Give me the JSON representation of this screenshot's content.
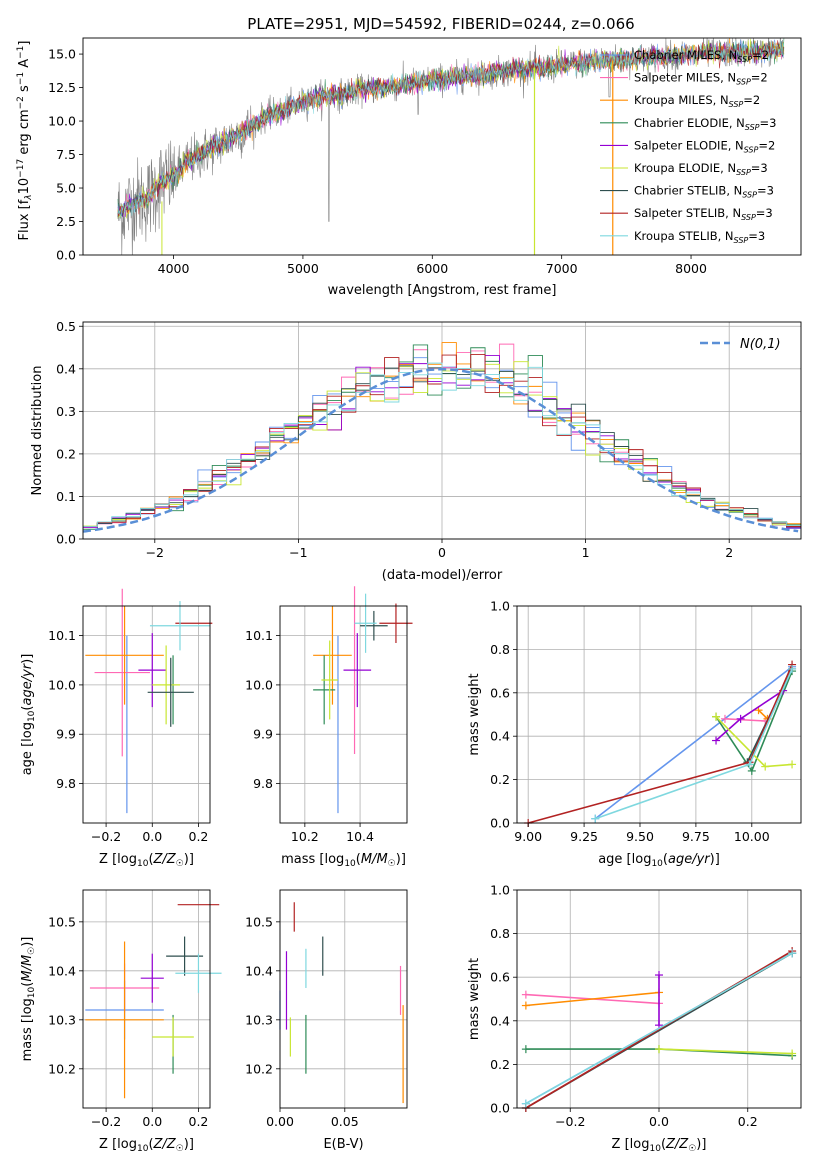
{
  "figure": {
    "title": "PLATE=2951, MJD=54592, FIBERID=0244, z=0.066"
  },
  "series": [
    {
      "name": "Chabrier MILES, N_SSP=2",
      "color": "#6495ed",
      "label_main": "Chabrier MILES, N",
      "label_sub": "SSP",
      "label_tail": "=2"
    },
    {
      "name": "Salpeter MILES, N_SSP=2",
      "color": "#ff69b4",
      "label_main": "Salpeter MILES, N",
      "label_sub": "SSP",
      "label_tail": "=2"
    },
    {
      "name": "Kroupa MILES, N_SSP=2",
      "color": "#ff8c00",
      "label_main": "Kroupa MILES, N",
      "label_sub": "SSP",
      "label_tail": "=2"
    },
    {
      "name": "Chabrier ELODIE, N_SSP=3",
      "color": "#2e8b57",
      "label_main": "Chabrier ELODIE, N",
      "label_sub": "SSP",
      "label_tail": "=3"
    },
    {
      "name": "Salpeter ELODIE, N_SSP=2",
      "color": "#9400d3",
      "label_main": "Salpeter ELODIE, N",
      "label_sub": "SSP",
      "label_tail": "=2"
    },
    {
      "name": "Kroupa ELODIE, N_SSP=3",
      "color": "#c8e632",
      "label_main": "Kroupa ELODIE, N",
      "label_sub": "SSP",
      "label_tail": "=3"
    },
    {
      "name": "Chabrier STELIB, N_SSP=3",
      "color": "#2f4f4f",
      "label_main": "Chabrier STELIB, N",
      "label_sub": "SSP",
      "label_tail": "=3"
    },
    {
      "name": "Salpeter STELIB, N_SSP=3",
      "color": "#b22222",
      "label_main": "Salpeter STELIB, N",
      "label_sub": "SSP",
      "label_tail": "=3"
    },
    {
      "name": "Kroupa STELIB, N_SSP=3",
      "color": "#7fd8df",
      "label_main": "Kroupa STELIB, N",
      "label_sub": "SSP",
      "label_tail": "=3"
    }
  ],
  "chart_data": [
    {
      "id": "spectrum",
      "type": "line",
      "xlabel": "wavelength [Angstrom, rest frame]",
      "ylabel": "Flux [f_λ 10^-17 erg cm^-2 s^-1 A^-1]",
      "ylabel_parts": [
        "Flux [f",
        "λ",
        "10",
        "−17",
        " erg cm",
        "−2",
        " s",
        "−1",
        " A",
        "−1",
        "]"
      ],
      "xlim": [
        3300,
        8850
      ],
      "ylim": [
        0,
        16.2
      ],
      "xticks": [
        4000,
        5000,
        6000,
        7000,
        8000
      ],
      "yticks": [
        0.0,
        2.5,
        5.0,
        7.5,
        10.0,
        12.5,
        15.0
      ],
      "xticklabels": [
        "4000",
        "5000",
        "6000",
        "7000",
        "8000"
      ],
      "yticklabels": [
        "0.0",
        "2.5",
        "5.0",
        "7.5",
        "10.0",
        "12.5",
        "15.0"
      ],
      "continuum": [
        [
          3590,
          3.2
        ],
        [
          3700,
          4.0
        ],
        [
          3800,
          4.2
        ],
        [
          3900,
          5.4
        ],
        [
          4000,
          5.8
        ],
        [
          4100,
          6.9
        ],
        [
          4300,
          8.0
        ],
        [
          4500,
          9.0
        ],
        [
          4700,
          10.3
        ],
        [
          4900,
          11.0
        ],
        [
          5100,
          11.8
        ],
        [
          5300,
          12.0
        ],
        [
          5500,
          12.4
        ],
        [
          5700,
          12.6
        ],
        [
          5900,
          12.9
        ],
        [
          6100,
          13.2
        ],
        [
          6300,
          13.4
        ],
        [
          6500,
          13.6
        ],
        [
          6700,
          13.9
        ],
        [
          6900,
          14.0
        ],
        [
          7100,
          14.3
        ],
        [
          7300,
          14.5
        ],
        [
          7500,
          14.6
        ],
        [
          7700,
          14.8
        ],
        [
          7900,
          14.9
        ],
        [
          8100,
          15.1
        ],
        [
          8300,
          15.1
        ],
        [
          8500,
          15.2
        ],
        [
          8700,
          15.3
        ]
      ],
      "data_range": [
        3570,
        8720
      ],
      "legend_position": "right"
    },
    {
      "id": "residuals",
      "type": "histogram",
      "xlabel": "(data-model)/error",
      "ylabel": "Normed distribution",
      "xlim": [
        -2.5,
        2.5
      ],
      "ylim": [
        0,
        0.51
      ],
      "xticks": [
        -2,
        -1,
        0,
        1,
        2
      ],
      "xticklabels": [
        "−2",
        "−1",
        "0",
        "1",
        "2"
      ],
      "yticks": [
        0.0,
        0.1,
        0.2,
        0.3,
        0.4,
        0.5
      ],
      "yticklabels": [
        "0.0",
        "0.1",
        "0.2",
        "0.3",
        "0.4",
        "0.5"
      ],
      "bin_width": 0.1,
      "normal_curve_label": "N(0,1)",
      "normal_curve_color": "#5a8fd6",
      "legend_position": "upper right"
    },
    {
      "id": "age-vs-Z",
      "type": "errorbar",
      "xlabel": "Z [log10(Z/Z☉)]",
      "ylabel": "age  [log10(age/yr)]",
      "xlim": [
        -0.3,
        0.25
      ],
      "ylim": [
        9.72,
        10.16
      ],
      "xticks": [
        -0.2,
        0.0,
        0.2
      ],
      "xticklabels": [
        "−0.2",
        "0.0",
        "0.2"
      ],
      "yticks": [
        9.8,
        9.9,
        10.0,
        10.1
      ],
      "yticklabels": [
        "9.8",
        "9.9",
        "10.0",
        "10.1"
      ],
      "points": [
        {
          "s": 0,
          "x": -0.11,
          "y": 9.92,
          "xerr": 0,
          "yerr": 0.18
        },
        {
          "s": 1,
          "x": -0.13,
          "y": 10.025,
          "xerr": 0.12,
          "yerr": 0.17
        },
        {
          "s": 2,
          "x": -0.12,
          "y": 10.06,
          "xerr": 0.17,
          "yerr": 0.1
        },
        {
          "s": 3,
          "x": 0.09,
          "y": 9.99,
          "xerr": 0.0,
          "yerr": 0.07
        },
        {
          "s": 4,
          "x": 0.0,
          "y": 10.03,
          "xerr": 0.06,
          "yerr": 0.075
        },
        {
          "s": 5,
          "x": 0.06,
          "y": 10.0,
          "xerr": 0.06,
          "yerr": 0.08
        },
        {
          "s": 6,
          "x": 0.08,
          "y": 9.985,
          "xerr": 0.1,
          "yerr": 0.07
        },
        {
          "s": 7,
          "x": 0.18,
          "y": 10.125,
          "xerr": 0.08,
          "yerr": 0.0
        },
        {
          "s": 8,
          "x": 0.12,
          "y": 10.12,
          "xerr": 0.13,
          "yerr": 0.05
        }
      ]
    },
    {
      "id": "age-vs-mass",
      "type": "errorbar",
      "xlabel": "mass [log10(M/M☉)]",
      "ylabel": "",
      "xlim": [
        10.11,
        10.57
      ],
      "ylim": [
        9.72,
        10.16
      ],
      "xticks": [
        10.2,
        10.4
      ],
      "xticklabels": [
        "10.2",
        "10.4"
      ],
      "yticks": [
        9.8,
        9.9,
        10.0,
        10.1
      ],
      "yticklabels": [
        "9.8",
        "9.9",
        "10.0",
        "10.1"
      ],
      "points": [
        {
          "s": 0,
          "x": 10.32,
          "y": 9.92,
          "xerr": 0,
          "yerr": 0.18
        },
        {
          "s": 1,
          "x": 10.38,
          "y": 10.03,
          "xerr": 0,
          "yerr": 0.17
        },
        {
          "s": 2,
          "x": 10.3,
          "y": 10.06,
          "xerr": 0.07,
          "yerr": 0.1
        },
        {
          "s": 3,
          "x": 10.27,
          "y": 9.99,
          "xerr": 0.04,
          "yerr": 0.07
        },
        {
          "s": 4,
          "x": 10.39,
          "y": 10.03,
          "xerr": 0.05,
          "yerr": 0.075
        },
        {
          "s": 5,
          "x": 10.29,
          "y": 10.01,
          "xerr": 0.03,
          "yerr": 0.08
        },
        {
          "s": 6,
          "x": 10.45,
          "y": 10.12,
          "xerr": 0.05,
          "yerr": 0.03
        },
        {
          "s": 7,
          "x": 10.53,
          "y": 10.125,
          "xerr": 0.06,
          "yerr": 0.04
        },
        {
          "s": 8,
          "x": 10.42,
          "y": 10.125,
          "xerr": 0.04,
          "yerr": 0.06
        }
      ]
    },
    {
      "id": "weight-vs-age",
      "type": "line",
      "xlabel": "age  [log10(age/yr)]",
      "ylabel": "mass weight",
      "xlim": [
        8.95,
        10.22
      ],
      "ylim": [
        0,
        1.0
      ],
      "xticks": [
        9.0,
        9.25,
        9.5,
        9.75,
        10.0
      ],
      "xticklabels": [
        "9.00",
        "9.25",
        "9.50",
        "9.75",
        "10.00"
      ],
      "yticks": [
        0.0,
        0.2,
        0.4,
        0.6,
        0.8,
        1.0
      ],
      "yticklabels": [
        "0.0",
        "0.2",
        "0.4",
        "0.6",
        "0.8",
        "1.0"
      ],
      "lines": [
        {
          "s": 0,
          "x": [
            9.3,
            10.18
          ],
          "y": [
            0.02,
            0.72
          ]
        },
        {
          "s": 1,
          "x": [
            9.88,
            10.06
          ],
          "y": [
            0.48,
            0.47
          ]
        },
        {
          "s": 2,
          "x": [
            10.03,
            10.07
          ],
          "y": [
            0.52,
            0.48
          ]
        },
        {
          "s": 3,
          "x": [
            9.84,
            10.0,
            10.18
          ],
          "y": [
            0.49,
            0.24,
            0.7
          ]
        },
        {
          "s": 4,
          "x": [
            9.84,
            9.95,
            10.14
          ],
          "y": [
            0.38,
            0.48,
            0.61
          ]
        },
        {
          "s": 5,
          "x": [
            9.84,
            10.06,
            10.18
          ],
          "y": [
            0.49,
            0.26,
            0.27
          ]
        },
        {
          "s": 6,
          "x": [
            9.98,
            10.18
          ],
          "y": [
            0.28,
            0.71
          ]
        },
        {
          "s": 7,
          "x": [
            9.0,
            9.99,
            10.18
          ],
          "y": [
            0.0,
            0.28,
            0.73
          ]
        },
        {
          "s": 8,
          "x": [
            9.3,
            9.99,
            10.18
          ],
          "y": [
            0.02,
            0.27,
            0.71
          ]
        }
      ]
    },
    {
      "id": "mass-vs-Z",
      "type": "errorbar",
      "xlabel": "Z [log10(Z/Z☉)]",
      "ylabel": "mass [log10(M/M☉)]",
      "xlim": [
        -0.3,
        0.25
      ],
      "ylim": [
        10.12,
        10.565
      ],
      "xticks": [
        -0.2,
        0.0,
        0.2
      ],
      "xticklabels": [
        "−0.2",
        "0.0",
        "0.2"
      ],
      "yticks": [
        10.2,
        10.3,
        10.4,
        10.5
      ],
      "yticklabels": [
        "10.2",
        "10.3",
        "10.4",
        "10.5"
      ],
      "points": [
        {
          "s": 0,
          "x": -0.12,
          "y": 10.32,
          "xerr": 0.17,
          "yerr": 0.06
        },
        {
          "s": 1,
          "x": -0.12,
          "y": 10.365,
          "xerr": 0.15,
          "yerr": 0.05
        },
        {
          "s": 2,
          "x": -0.12,
          "y": 10.3,
          "xerr": 0.17,
          "yerr": 0.16
        },
        {
          "s": 3,
          "x": 0.09,
          "y": 10.25,
          "xerr": 0.0,
          "yerr": 0.06
        },
        {
          "s": 4,
          "x": 0.0,
          "y": 10.385,
          "xerr": 0.05,
          "yerr": 0.05
        },
        {
          "s": 5,
          "x": 0.09,
          "y": 10.265,
          "xerr": 0.09,
          "yerr": 0.04
        },
        {
          "s": 6,
          "x": 0.14,
          "y": 10.43,
          "xerr": 0.08,
          "yerr": 0.04
        },
        {
          "s": 7,
          "x": 0.2,
          "y": 10.535,
          "xerr": 0.09,
          "yerr": 0.0
        },
        {
          "s": 8,
          "x": 0.2,
          "y": 10.395,
          "xerr": 0.1,
          "yerr": 0.04
        }
      ]
    },
    {
      "id": "mass-vs-ebv",
      "type": "errorbar",
      "xlabel": "E(B-V)",
      "ylabel": "",
      "xlim": [
        0.0,
        0.098
      ],
      "ylim": [
        10.12,
        10.565
      ],
      "xticks": [
        0.0,
        0.05
      ],
      "xticklabels": [
        "0.00",
        "0.05"
      ],
      "yticks": [
        10.2,
        10.3,
        10.4,
        10.5
      ],
      "yticklabels": [
        "10.2",
        "10.3",
        "10.4",
        "10.5"
      ],
      "points": [
        {
          "s": 0,
          "x": 0.0,
          "y": 10.32,
          "xerr": 0,
          "yerr": 0.04
        },
        {
          "s": 1,
          "x": 0.093,
          "y": 10.36,
          "xerr": 0,
          "yerr": 0.05
        },
        {
          "s": 2,
          "x": 0.095,
          "y": 10.23,
          "xerr": 0,
          "yerr": 0.1
        },
        {
          "s": 3,
          "x": 0.02,
          "y": 10.25,
          "xerr": 0,
          "yerr": 0.06
        },
        {
          "s": 4,
          "x": 0.005,
          "y": 10.36,
          "xerr": 0,
          "yerr": 0.08
        },
        {
          "s": 5,
          "x": 0.008,
          "y": 10.265,
          "xerr": 0,
          "yerr": 0.04
        },
        {
          "s": 6,
          "x": 0.033,
          "y": 10.43,
          "xerr": 0,
          "yerr": 0.04
        },
        {
          "s": 7,
          "x": 0.011,
          "y": 10.51,
          "xerr": 0,
          "yerr": 0.03
        },
        {
          "s": 8,
          "x": 0.02,
          "y": 10.405,
          "xerr": 0,
          "yerr": 0.04
        }
      ]
    },
    {
      "id": "weight-vs-Z",
      "type": "line",
      "xlabel": "Z [log10(Z/Z☉)]",
      "ylabel": "mass weight",
      "xlim": [
        -0.32,
        0.32
      ],
      "ylim": [
        0,
        1.0
      ],
      "xticks": [
        -0.2,
        0.0,
        0.2
      ],
      "xticklabels": [
        "−0.2",
        "0.0",
        "0.2"
      ],
      "yticks": [
        0.0,
        0.2,
        0.4,
        0.6,
        0.8,
        1.0
      ],
      "yticklabels": [
        "0.0",
        "0.2",
        "0.4",
        "0.6",
        "0.8",
        "1.0"
      ],
      "lines": [
        {
          "s": 0,
          "x": [
            -0.3,
            0.3
          ],
          "y": [
            0.02,
            0.71
          ]
        },
        {
          "s": 1,
          "x": [
            -0.3,
            0.0
          ],
          "y": [
            0.52,
            0.48
          ]
        },
        {
          "s": 2,
          "x": [
            -0.3,
            0.0
          ],
          "y": [
            0.47,
            0.53
          ]
        },
        {
          "s": 3,
          "x": [
            -0.3,
            0.0,
            0.3
          ],
          "y": [
            0.27,
            0.27,
            0.24
          ]
        },
        {
          "s": 4,
          "x": [
            0.0,
            0.0
          ],
          "y": [
            0.38,
            0.61
          ]
        },
        {
          "s": 5,
          "x": [
            0.0,
            0.3
          ],
          "y": [
            0.27,
            0.25
          ]
        },
        {
          "s": 6,
          "x": [
            -0.3,
            0.3
          ],
          "y": [
            0.0,
            0.71
          ]
        },
        {
          "s": 7,
          "x": [
            -0.3,
            0.3
          ],
          "y": [
            0.0,
            0.72
          ]
        },
        {
          "s": 8,
          "x": [
            -0.3,
            0.3
          ],
          "y": [
            0.02,
            0.71
          ]
        }
      ]
    }
  ]
}
